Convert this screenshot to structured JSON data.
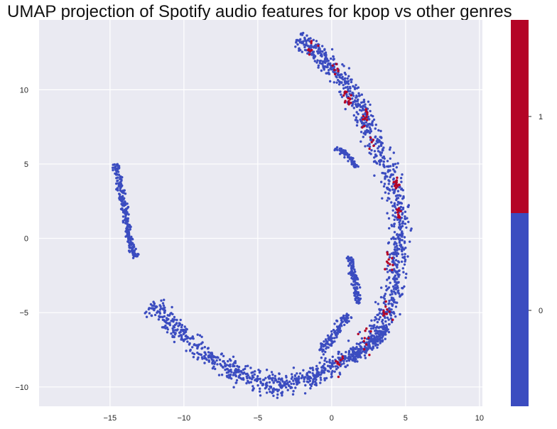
{
  "chart_data": {
    "type": "scatter",
    "title": "UMAP projection of Spotify audio features for kpop vs other genres",
    "xlabel": "",
    "ylabel": "",
    "xlim": [
      -19.8,
      10.2
    ],
    "ylim": [
      -11.3,
      14.7
    ],
    "x_ticks": [
      -15,
      -10,
      -5,
      0,
      5,
      10
    ],
    "x_tick_labels": [
      "−15",
      "−10",
      "−5",
      "0",
      "5",
      "10"
    ],
    "y_ticks": [
      -10,
      -5,
      0,
      5,
      10
    ],
    "y_tick_labels": [
      "−10",
      "−5",
      "0",
      "5",
      "10"
    ],
    "grid": true,
    "colorbar": {
      "labels": [
        "0",
        "1"
      ],
      "colors": [
        "#3b4cc0",
        "#b40426"
      ]
    },
    "series": [
      {
        "label": "0",
        "color": "#3b4cc0",
        "segments": [
          {
            "kind": "band",
            "points": [
              [
                -14.6,
                5.0
              ],
              [
                -14.2,
                2.8
              ],
              [
                -13.8,
                0.9
              ],
              [
                -13.6,
                -0.2
              ],
              [
                -13.3,
                -1.3
              ]
            ],
            "width": 0.12
          },
          {
            "kind": "band",
            "points": [
              [
                -12.2,
                -4.4
              ],
              [
                -11.0,
                -5.7
              ],
              [
                -9.5,
                -7.0
              ],
              [
                -8.0,
                -8.2
              ],
              [
                -6.5,
                -9.1
              ],
              [
                -5.0,
                -9.6
              ],
              [
                -3.5,
                -9.9
              ],
              [
                -2.3,
                -9.7
              ],
              [
                -1.0,
                -9.1
              ],
              [
                0.5,
                -8.3
              ],
              [
                2.0,
                -7.4
              ],
              [
                3.2,
                -6.3
              ],
              [
                3.8,
                -5.0
              ],
              [
                4.2,
                -3.5
              ],
              [
                4.4,
                -1.8
              ],
              [
                4.6,
                0.0
              ],
              [
                4.6,
                1.8
              ],
              [
                4.3,
                3.3
              ],
              [
                3.7,
                4.8
              ],
              [
                3.0,
                6.2
              ],
              [
                2.3,
                7.8
              ],
              [
                1.6,
                9.3
              ],
              [
                0.6,
                10.8
              ],
              [
                -0.5,
                12.0
              ],
              [
                -1.6,
                13.0
              ],
              [
                -2.3,
                13.5
              ]
            ],
            "width": 0.35
          },
          {
            "kind": "band",
            "points": [
              [
                0.3,
                6.1
              ],
              [
                0.9,
                5.7
              ],
              [
                1.3,
                5.4
              ],
              [
                1.6,
                4.7
              ]
            ],
            "width": 0.1
          },
          {
            "kind": "band",
            "points": [
              [
                1.2,
                -1.2
              ],
              [
                1.4,
                -2.0
              ],
              [
                1.6,
                -3.0
              ],
              [
                1.8,
                -3.9
              ],
              [
                1.8,
                -4.4
              ]
            ],
            "width": 0.12
          },
          {
            "kind": "band",
            "points": [
              [
                -0.7,
                -7.6
              ],
              [
                -0.1,
                -6.8
              ],
              [
                0.6,
                -5.9
              ],
              [
                1.2,
                -5.1
              ]
            ],
            "width": 0.15
          },
          {
            "kind": "band",
            "points": [
              [
                1.1,
                -8.1
              ],
              [
                2.0,
                -7.6
              ],
              [
                3.0,
                -6.9
              ],
              [
                3.8,
                -6.0
              ]
            ],
            "width": 0.15
          }
        ],
        "count": 2300
      },
      {
        "label": "1",
        "color": "#b40426",
        "clusters": [
          {
            "center": [
              -1.3,
              12.7
            ],
            "spread": 0.35,
            "count": 8
          },
          {
            "center": [
              0.3,
              11.2
            ],
            "spread": 0.3,
            "count": 6
          },
          {
            "center": [
              1.2,
              9.3
            ],
            "spread": 0.4,
            "count": 14
          },
          {
            "center": [
              2.2,
              8.1
            ],
            "spread": 0.3,
            "count": 12
          },
          {
            "center": [
              2.8,
              6.3
            ],
            "spread": 0.3,
            "count": 5
          },
          {
            "center": [
              4.4,
              3.8
            ],
            "spread": 0.25,
            "count": 14
          },
          {
            "center": [
              4.5,
              1.6
            ],
            "spread": 0.3,
            "count": 10
          },
          {
            "center": [
              3.9,
              -1.5
            ],
            "spread": 0.3,
            "count": 10
          },
          {
            "center": [
              3.7,
              -4.8
            ],
            "spread": 0.35,
            "count": 10
          },
          {
            "center": [
              2.4,
              -7.0
            ],
            "spread": 0.4,
            "count": 10
          },
          {
            "center": [
              0.5,
              -8.5
            ],
            "spread": 0.35,
            "count": 8
          }
        ]
      }
    ]
  }
}
